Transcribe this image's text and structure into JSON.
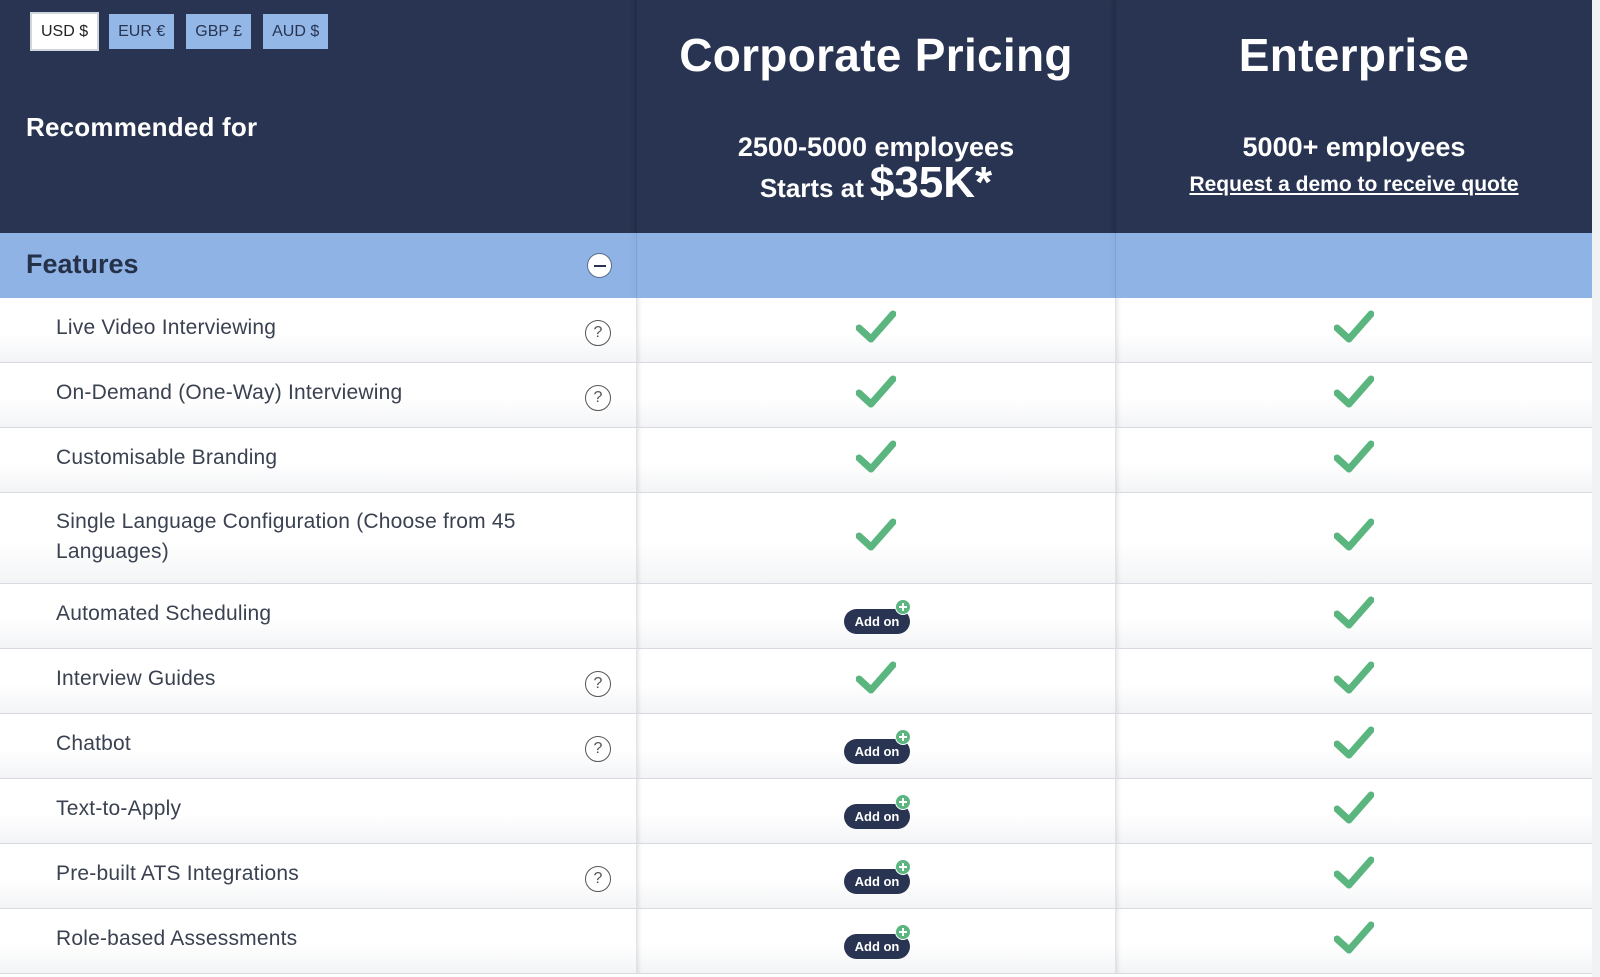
{
  "currency": {
    "options": [
      {
        "label": "USD $",
        "active": true
      },
      {
        "label": "EUR €",
        "active": false
      },
      {
        "label": "GBP £",
        "active": false
      },
      {
        "label": "AUD $",
        "active": false
      }
    ]
  },
  "header": {
    "recommended_label": "Recommended for"
  },
  "plans": {
    "corporate": {
      "title": "Corporate Pricing",
      "employees": "2500-5000 employees",
      "price_prefix": "Starts at",
      "price_amount": "$35K*"
    },
    "enterprise": {
      "title": "Enterprise",
      "employees": "5000+ employees",
      "quote_link": "Request a demo to receive quote"
    }
  },
  "features": {
    "section_title": "Features",
    "addon_label": "Add on",
    "help_glyph": "?",
    "colors": {
      "check": "#5ab57f",
      "header_bg": "#283451",
      "section_bar": "#8fb3e5"
    },
    "rows": [
      {
        "label": "Live Video Interviewing",
        "help": true,
        "corporate": "check",
        "enterprise": "check"
      },
      {
        "label": "On-Demand (One-Way) Interviewing",
        "help": true,
        "corporate": "check",
        "enterprise": "check"
      },
      {
        "label": "Customisable Branding",
        "help": false,
        "corporate": "check",
        "enterprise": "check"
      },
      {
        "label": "Single Language Configuration (Choose from 45 Languages)",
        "help": false,
        "corporate": "check",
        "enterprise": "check"
      },
      {
        "label": "Automated Scheduling",
        "help": false,
        "corporate": "addon",
        "enterprise": "check"
      },
      {
        "label": "Interview Guides",
        "help": true,
        "corporate": "check",
        "enterprise": "check"
      },
      {
        "label": "Chatbot",
        "help": true,
        "corporate": "addon",
        "enterprise": "check"
      },
      {
        "label": "Text-to-Apply",
        "help": false,
        "corporate": "addon",
        "enterprise": "check"
      },
      {
        "label": "Pre-built ATS Integrations",
        "help": true,
        "corporate": "addon",
        "enterprise": "check"
      },
      {
        "label": "Role-based Assessments",
        "help": false,
        "corporate": "addon",
        "enterprise": "check"
      }
    ]
  }
}
